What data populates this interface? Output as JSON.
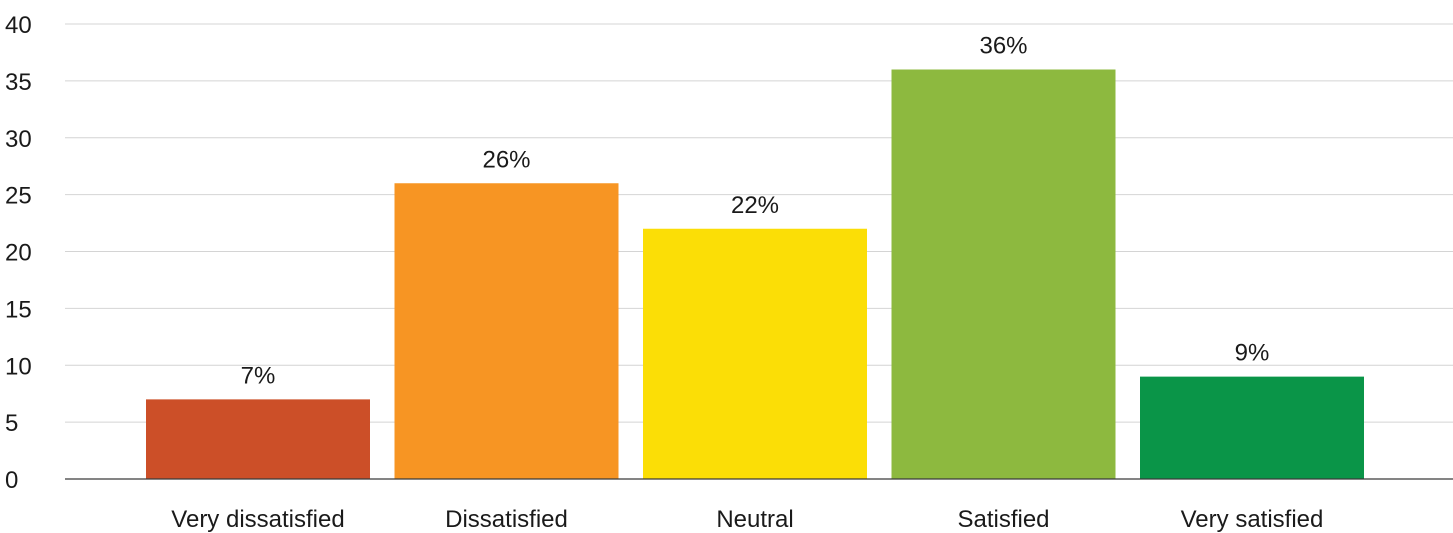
{
  "chart_data": {
    "type": "bar",
    "categories": [
      "Very dissatisfied",
      "Dissatisfied",
      "Neutral",
      "Satisfied",
      "Very satisfied"
    ],
    "values": [
      7,
      26,
      22,
      36,
      9
    ],
    "data_labels": [
      "7%",
      "26%",
      "22%",
      "36%",
      "9%"
    ],
    "colors": [
      "#cc4f28",
      "#f79523",
      "#fbde06",
      "#8db93f",
      "#0a9548"
    ],
    "ylim": [
      0,
      40
    ],
    "yticks": [
      0,
      5,
      10,
      15,
      20,
      25,
      30,
      35,
      40
    ],
    "grid": true,
    "legend": "none",
    "title": "",
    "xlabel": "",
    "ylabel": ""
  }
}
